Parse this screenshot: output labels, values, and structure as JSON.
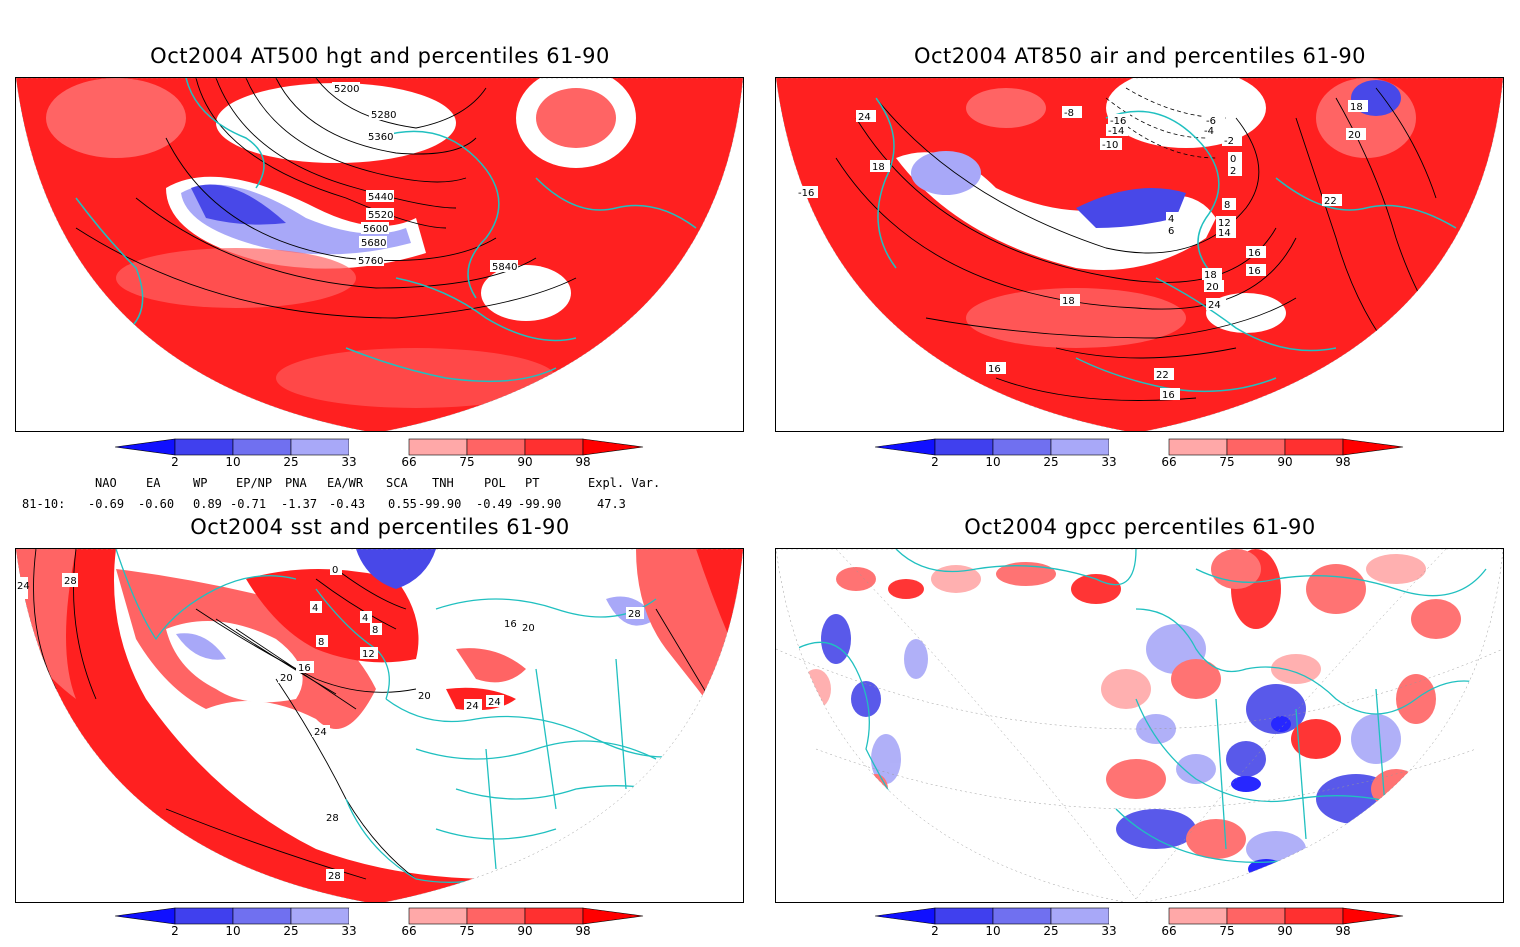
{
  "panels": [
    {
      "id": "tl",
      "title": "Oct2004 AT500 hgt and percentiles 61-90",
      "contour_labels": [
        "5200",
        "5280",
        "5360",
        "5440",
        "5520",
        "5600",
        "5680",
        "5760",
        "5840"
      ]
    },
    {
      "id": "tr",
      "title": "Oct2004 AT850 air and percentiles 61-90",
      "contour_labels": [
        "-16",
        "-8",
        "-16",
        "-14",
        "-10",
        "-6",
        "-4",
        "-2",
        "0",
        "2",
        "4",
        "6",
        "8",
        "12",
        "14",
        "16",
        "18",
        "20",
        "22",
        "24",
        "18",
        "18",
        "16",
        "16",
        "16",
        "18",
        "20",
        "22",
        "24"
      ]
    },
    {
      "id": "bl",
      "title": "Oct2004 sst and percentiles 61-90",
      "contour_labels": [
        "24",
        "28",
        "0",
        "4",
        "4",
        "8",
        "8",
        "12",
        "16",
        "20",
        "20",
        "24",
        "24",
        "24",
        "28",
        "28",
        "28",
        "16",
        "20"
      ]
    },
    {
      "id": "br",
      "title": "Oct2004 gpcc percentiles 61-90",
      "contour_labels": []
    }
  ],
  "colorbar": {
    "ticks": [
      "2",
      "10",
      "25",
      "33",
      "66",
      "75",
      "90",
      "98"
    ],
    "colors": {
      "dark_blue": "#1010ff",
      "blue": "#4040ee",
      "mid_blue": "#7070f0",
      "light_blue": "#a8a8f8",
      "white": "#ffffff",
      "light_red": "#ffa8a8",
      "mid_red": "#ff6464",
      "red": "#ff3030",
      "dark_red": "#ff0000"
    }
  },
  "teleconnections": {
    "header": [
      "NAO",
      "EA",
      "WP",
      "EP/NP",
      "PNA",
      "EA/WR",
      "SCA",
      "TNH",
      "POL",
      "PT",
      "Expl. Var."
    ],
    "row_label": "81-10:",
    "values": [
      "-0.69",
      "-0.60",
      "0.89",
      "-0.71",
      "-1.37",
      "-0.43",
      "0.55",
      "-99.90",
      "-0.49",
      "-99.90",
      "47.3"
    ]
  },
  "colors": {
    "coast": "#20c0c0",
    "contour": "#000000",
    "red": "#ff2020",
    "blue": "#4848e8"
  }
}
